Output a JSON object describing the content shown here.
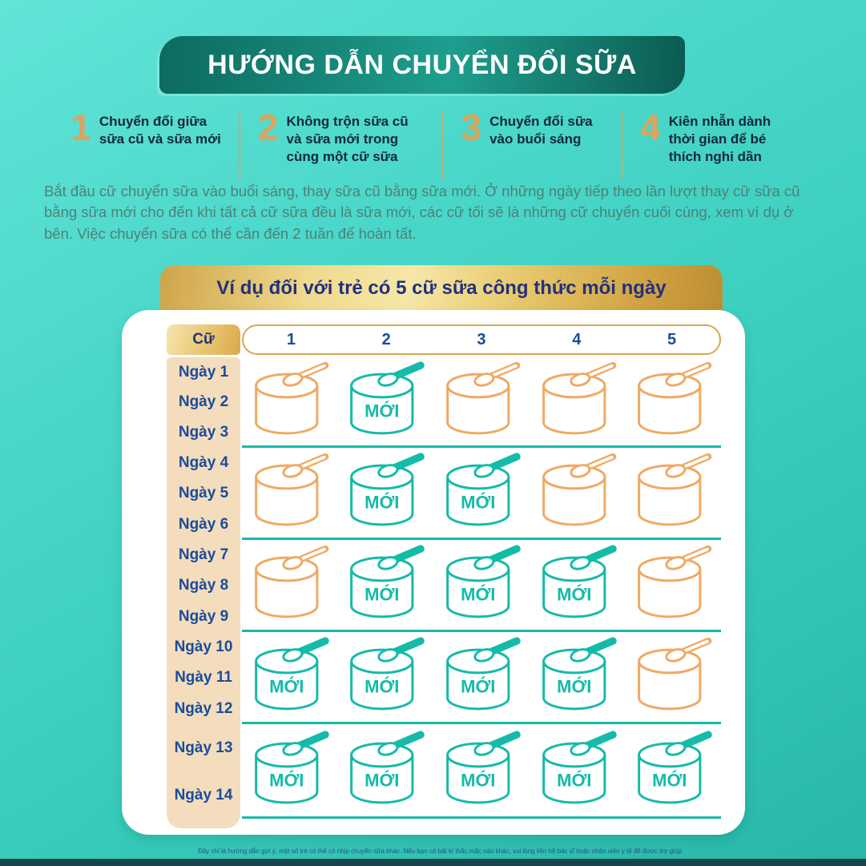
{
  "header": {
    "title": "HƯỚNG DẪN CHUYỂN ĐỔI SỮA"
  },
  "steps": [
    {
      "number": "1",
      "text": "Chuyển đổi giữa sữa cũ và sữa mới"
    },
    {
      "number": "2",
      "text": "Không trộn sữa cũ và sữa mới trong cùng một cữ sữa"
    },
    {
      "number": "3",
      "text": "Chuyển đổi sữa vào buổi sáng"
    },
    {
      "number": "4",
      "text": "Kiên nhẫn dành thời gian để bé thích nghi dần"
    }
  ],
  "intro_paragraph": "Bắt đầu cữ chuyển sữa vào buổi sáng, thay sữa cũ bằng sữa mới. Ở những ngày tiếp theo lần lượt thay cữ sữa cũ bằng sữa mới cho đến khi tất cả cữ sữa đều là sữa mới, các cữ tối sẽ là những cữ chuyển cuối cùng, xem ví dụ ở bên. Việc chuyển sữa có thể cần đến 2 tuần để hoàn tất.",
  "example": {
    "banner_title": "Ví dụ đối với trẻ có 5 cữ sữa công thức mỗi ngày",
    "table": {
      "corner_label": "Cữ",
      "feed_columns": [
        "1",
        "2",
        "3",
        "4",
        "5"
      ],
      "new_label": "MỚI",
      "groups": [
        {
          "days": [
            "Ngày 1",
            "Ngày 2",
            "Ngày 3"
          ],
          "cans": [
            "old",
            "new",
            "old",
            "old",
            "old"
          ]
        },
        {
          "days": [
            "Ngày 4",
            "Ngày 5",
            "Ngày 6"
          ],
          "cans": [
            "old",
            "new",
            "new",
            "old",
            "old"
          ]
        },
        {
          "days": [
            "Ngày 7",
            "Ngày 8",
            "Ngày 9"
          ],
          "cans": [
            "old",
            "new",
            "new",
            "new",
            "old"
          ]
        },
        {
          "days": [
            "Ngày 10",
            "Ngày 11",
            "Ngày 12"
          ],
          "cans": [
            "new",
            "new",
            "new",
            "new",
            "old"
          ]
        },
        {
          "days": [
            "Ngày 13",
            "Ngày 14"
          ],
          "cans": [
            "new",
            "new",
            "new",
            "new",
            "new"
          ]
        }
      ]
    }
  },
  "footer": {
    "disclaimer": "Đây chỉ là hướng dẫn gợi ý, một số trẻ có thể có nhịp chuyển sữa khác. Nếu bạn có bất kì thắc mắc nào khác, vui lòng liên hệ bác sĩ hoặc nhân viên y tế để được trợ giúp."
  },
  "colors": {
    "old_can": "#F0A963",
    "new_can": "#14BBA9",
    "gold_accent": "#DBA55F",
    "navy_text": "#14283A",
    "blue_text": "#1A4C9C",
    "banner_navy": "#22307E"
  }
}
